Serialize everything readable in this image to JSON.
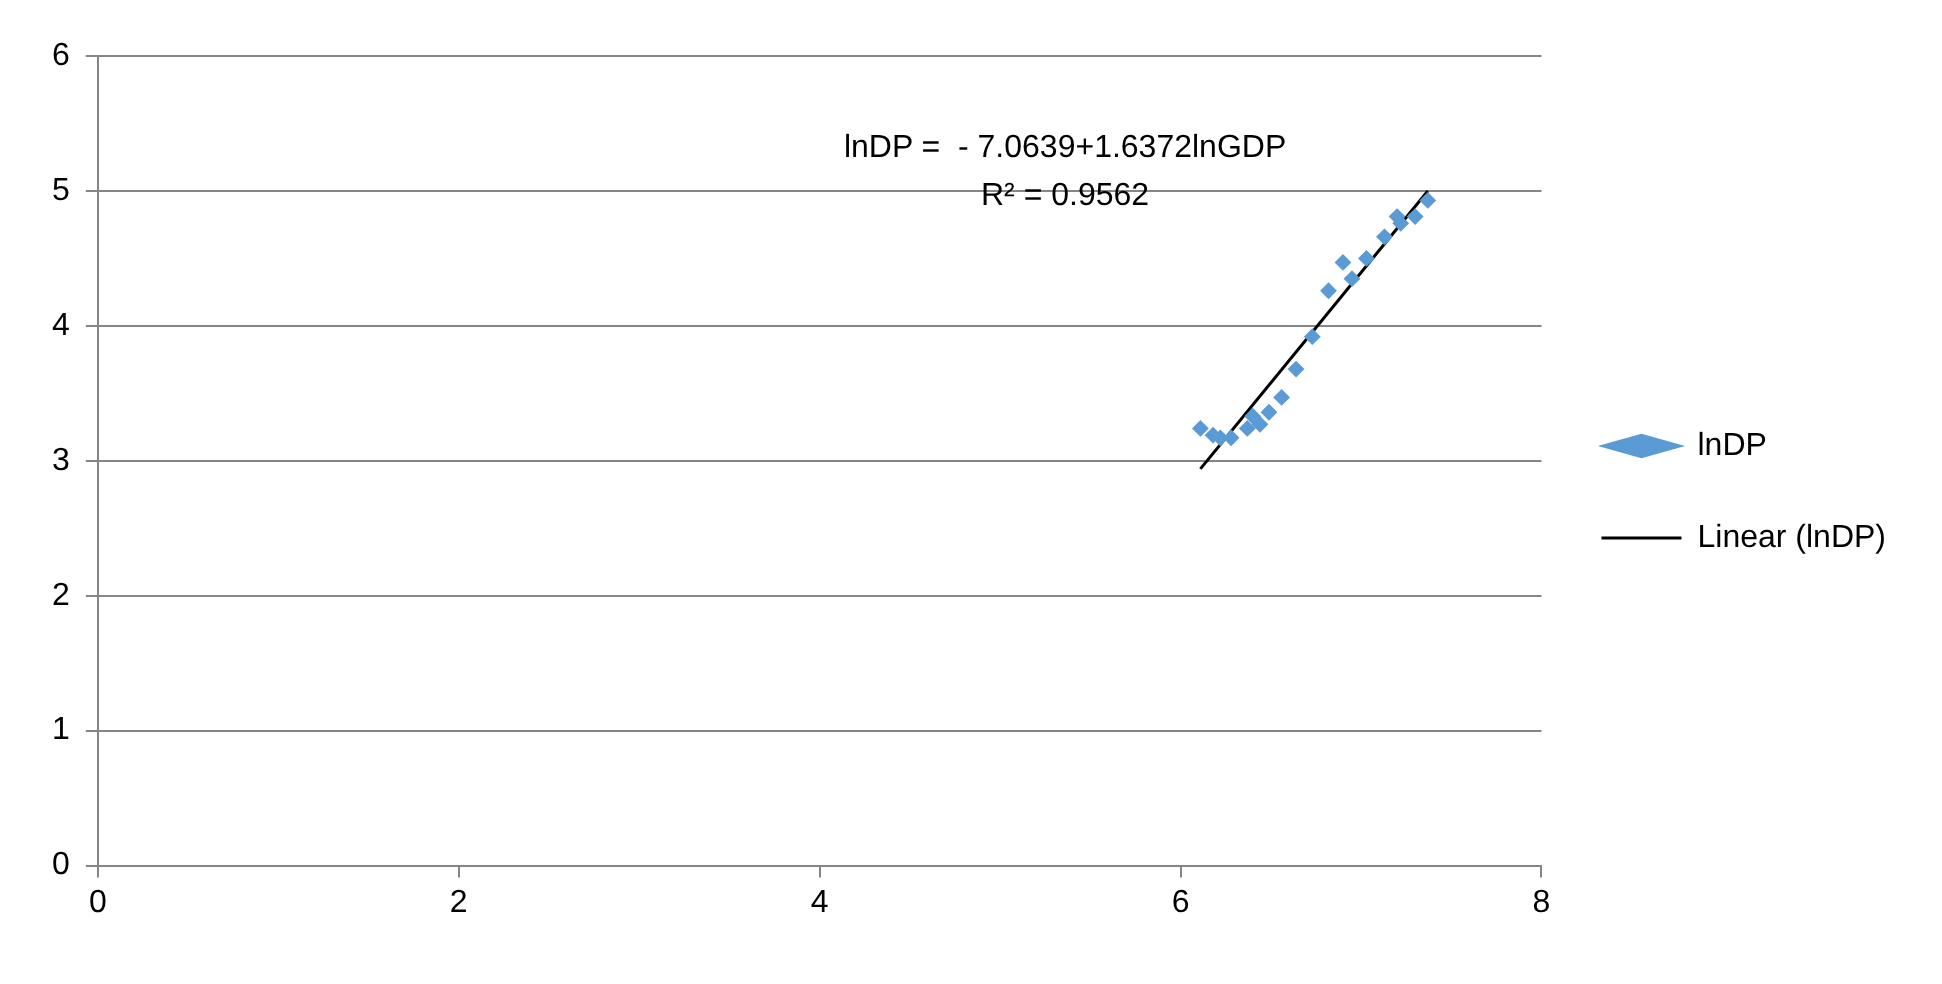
{
  "chart_data": {
    "type": "scatter",
    "xlim": [
      0,
      8
    ],
    "xticks": [
      0,
      2,
      4,
      6,
      8
    ],
    "ylim": [
      0,
      6
    ],
    "yticks": [
      0,
      1,
      2,
      3,
      4,
      5,
      6
    ],
    "grid": "y",
    "legend": "right",
    "annotations": [
      "lnDP =  - 7.0639+1.6372lnGDP",
      "R² = 0.9562"
    ],
    "series": [
      {
        "name": "lnDP",
        "color": "#5b9bd5",
        "marker": "diamond",
        "x": [
          6.11,
          6.18,
          6.22,
          6.28,
          6.37,
          6.4,
          6.44,
          6.49,
          6.56,
          6.64,
          6.73,
          6.82,
          6.9,
          6.95,
          7.03,
          7.13,
          7.2,
          7.22,
          7.3,
          7.37
        ],
        "values": [
          3.24,
          3.19,
          3.17,
          3.17,
          3.24,
          3.33,
          3.27,
          3.36,
          3.47,
          3.68,
          3.92,
          4.26,
          4.47,
          4.35,
          4.5,
          4.66,
          4.81,
          4.76,
          4.81,
          4.93
        ]
      },
      {
        "name": "Linear (lnDP)",
        "type": "line",
        "color": "#000000",
        "x": [
          6.11,
          7.37
        ],
        "values": [
          2.94,
          5.0
        ]
      }
    ]
  }
}
